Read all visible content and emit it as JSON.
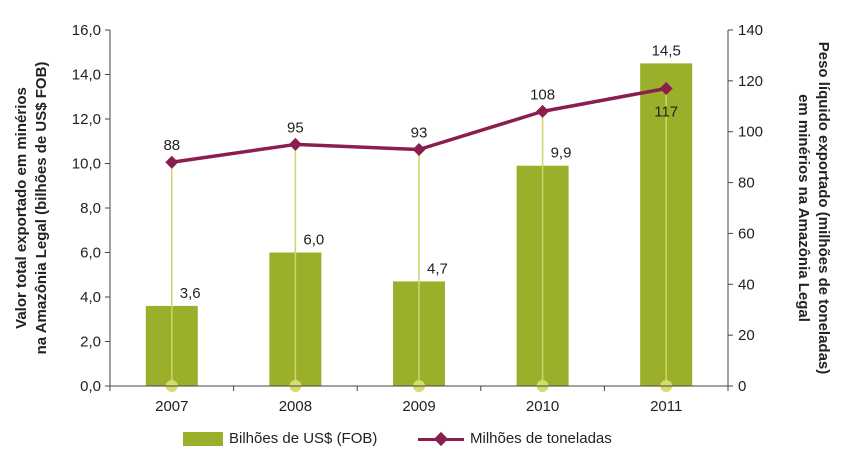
{
  "chart_data": {
    "type": "bar",
    "categories": [
      "2007",
      "2008",
      "2009",
      "2010",
      "2011"
    ],
    "series": [
      {
        "name": "Bilhões de US$ (FOB)",
        "type": "bar",
        "axis": "left",
        "values": [
          3.6,
          6.0,
          4.7,
          9.9,
          14.5
        ],
        "labels": [
          "3,6",
          "6,0",
          "4,7",
          "9,9",
          "14,5"
        ],
        "color": "#9aaf2a"
      },
      {
        "name": "Milhões de toneladas",
        "type": "line",
        "axis": "right",
        "values": [
          88,
          95,
          93,
          108,
          117
        ],
        "labels": [
          "88",
          "95",
          "93",
          "108",
          "117"
        ],
        "color": "#8b1e4e"
      }
    ],
    "ylabel_left": "Valor total exportado em minérios na Amazônia Legal (bilhões de US$ FOB)",
    "ylabel_left_lines": [
      "Valor total exportado em minérios",
      "na Amazônia Legal (bilhões de US$ FOB)"
    ],
    "ylabel_right": "Peso líquido exportado (milhões de toneladas) em minérios na Amazônia Legal",
    "ylabel_right_lines": [
      "Peso líquido exportado (milhões de toneladas)",
      "em minérios na Amazônia Legal"
    ],
    "ylim_left": [
      0,
      16
    ],
    "ylim_right": [
      0,
      140
    ],
    "yticks_left": [
      "0,0",
      "2,0",
      "4,0",
      "6,0",
      "8,0",
      "10,0",
      "12,0",
      "14,0",
      "16,0"
    ],
    "yticks_right": [
      "0",
      "20",
      "40",
      "60",
      "80",
      "100",
      "120",
      "140"
    ],
    "grid": false,
    "legend_position": "bottom",
    "drop_line_color": "#cfd66a",
    "drop_marker_color": "#d6dc6e"
  },
  "legend": {
    "bar_label": "Bilhões de US$ (FOB)",
    "line_label": "Milhões de toneladas"
  }
}
